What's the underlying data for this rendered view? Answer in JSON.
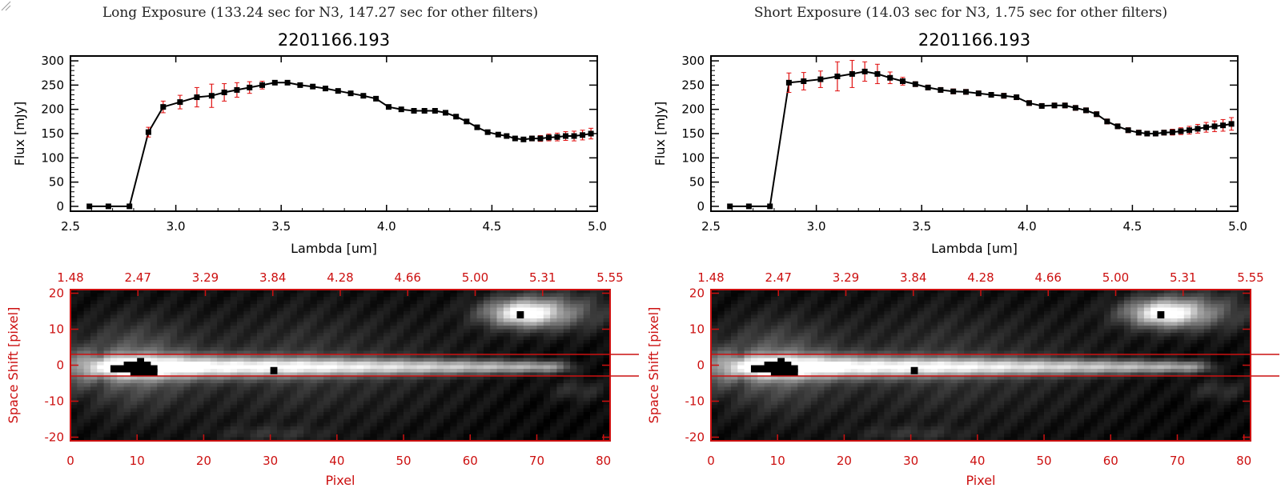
{
  "panels": [
    {
      "exposure_title": "Long Exposure (133.24 sec for N3, 147.27 sec for other filters)",
      "chart_data": {
        "type": "line",
        "title": "2201166.193",
        "xlabel": "Lambda [um]",
        "ylabel": "Flux [mJy]",
        "xlim": [
          2.5,
          5.0
        ],
        "ylim": [
          -10,
          310
        ],
        "xticks": [
          "2.5",
          "3.0",
          "3.5",
          "4.0",
          "4.5",
          "5.0"
        ],
        "yticks": [
          "0",
          "50",
          "100",
          "150",
          "200",
          "250",
          "300"
        ],
        "series": [
          {
            "x": [
              2.59,
              2.68,
              2.78,
              2.87,
              2.94,
              3.02,
              3.1,
              3.17,
              3.23,
              3.29,
              3.35,
              3.41,
              3.47,
              3.53,
              3.59,
              3.65,
              3.71,
              3.77,
              3.83,
              3.89,
              3.95,
              4.01,
              4.07,
              4.13,
              4.18,
              4.23,
              4.28,
              4.33,
              4.38,
              4.43,
              4.48,
              4.53,
              4.57,
              4.61,
              4.65,
              4.69,
              4.73,
              4.77,
              4.81,
              4.85,
              4.89,
              4.93,
              4.97
            ],
            "y": [
              0,
              0,
              0,
              153,
              205,
              215,
              225,
              228,
              235,
              240,
              245,
              250,
              255,
              255,
              250,
              247,
              243,
              238,
              233,
              228,
              222,
              205,
              200,
              197,
              197,
              197,
              193,
              185,
              175,
              163,
              153,
              148,
              145,
              140,
              138,
              140,
              140,
              142,
              143,
              145,
              145,
              147,
              150
            ],
            "yerr": [
              2,
              2,
              2,
              10,
              12,
              14,
              20,
              24,
              18,
              15,
              12,
              8,
              4,
              4,
              4,
              4,
              4,
              4,
              4,
              4,
              4,
              4,
              4,
              4,
              4,
              4,
              4,
              4,
              4,
              4,
              4,
              4,
              4,
              4,
              4,
              5,
              6,
              7,
              8,
              9,
              10,
              10,
              11
            ]
          }
        ]
      },
      "image_plot": {
        "xlabel": "Pixel",
        "ylabel": "Space Shift [pixel]",
        "xlim": [
          0,
          81
        ],
        "ylim": [
          -21,
          21
        ],
        "xticks": [
          "0",
          "10",
          "20",
          "30",
          "40",
          "50",
          "60",
          "70",
          "80"
        ],
        "yticks": [
          "-20",
          "-10",
          "0",
          "10",
          "20"
        ],
        "top_ticks": [
          "1.48",
          "2.47",
          "3.29",
          "3.84",
          "4.28",
          "4.66",
          "5.00",
          "5.31",
          "5.55"
        ],
        "aperture_lines_y": [
          3,
          -3
        ]
      }
    },
    {
      "exposure_title": "Short Exposure (14.03 sec for N3, 1.75 sec for other filters)",
      "chart_data": {
        "type": "line",
        "title": "2201166.193",
        "xlabel": "Lambda [um]",
        "ylabel": "Flux [mJy]",
        "xlim": [
          2.5,
          5.0
        ],
        "ylim": [
          -10,
          310
        ],
        "xticks": [
          "2.5",
          "3.0",
          "3.5",
          "4.0",
          "4.5",
          "5.0"
        ],
        "yticks": [
          "0",
          "50",
          "100",
          "150",
          "200",
          "250",
          "300"
        ],
        "series": [
          {
            "x": [
              2.59,
              2.68,
              2.78,
              2.87,
              2.94,
              3.02,
              3.1,
              3.17,
              3.23,
              3.29,
              3.35,
              3.41,
              3.47,
              3.53,
              3.59,
              3.65,
              3.71,
              3.77,
              3.83,
              3.89,
              3.95,
              4.01,
              4.07,
              4.13,
              4.18,
              4.23,
              4.28,
              4.33,
              4.38,
              4.43,
              4.48,
              4.53,
              4.57,
              4.61,
              4.65,
              4.69,
              4.73,
              4.77,
              4.81,
              4.85,
              4.89,
              4.93,
              4.97
            ],
            "y": [
              0,
              0,
              0,
              255,
              258,
              262,
              268,
              273,
              278,
              273,
              265,
              258,
              252,
              245,
              240,
              237,
              236,
              233,
              230,
              228,
              225,
              213,
              207,
              208,
              208,
              203,
              198,
              190,
              175,
              165,
              157,
              152,
              150,
              150,
              152,
              153,
              155,
              157,
              160,
              163,
              165,
              167,
              170
            ],
            "yerr": [
              2,
              2,
              2,
              20,
              18,
              17,
              30,
              28,
              20,
              20,
              12,
              8,
              5,
              5,
              5,
              5,
              5,
              5,
              5,
              5,
              5,
              5,
              5,
              5,
              5,
              5,
              5,
              5,
              5,
              5,
              5,
              5,
              5,
              5,
              5,
              6,
              7,
              8,
              9,
              10,
              11,
              12,
              13
            ]
          }
        ]
      },
      "image_plot": {
        "xlabel": "Pixel",
        "ylabel": "Space Shift [pixel]",
        "xlim": [
          0,
          81
        ],
        "ylim": [
          -21,
          21
        ],
        "xticks": [
          "0",
          "10",
          "20",
          "30",
          "40",
          "50",
          "60",
          "70",
          "80"
        ],
        "yticks": [
          "-20",
          "-10",
          "0",
          "10",
          "20"
        ],
        "top_ticks": [
          "1.48",
          "2.47",
          "3.29",
          "3.84",
          "4.28",
          "4.66",
          "5.00",
          "5.31",
          "5.55"
        ],
        "aperture_lines_y": [
          3,
          -3
        ]
      }
    }
  ],
  "colors": {
    "accent": "#cc1010",
    "line": "#000000",
    "errorbar": "#e01010"
  }
}
